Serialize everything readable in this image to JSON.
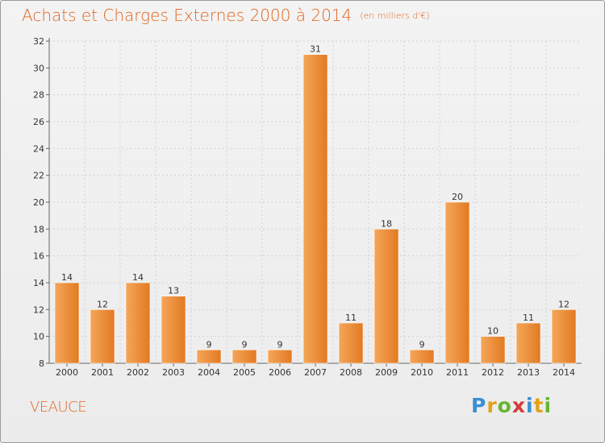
{
  "title": "Achats et Charges Externes 2000 à 2014",
  "unit": "(en milliers d'€)",
  "commune": "VEAUCE",
  "logo": {
    "letters": [
      "P",
      "r",
      "o",
      "x",
      "i",
      "t",
      "i"
    ],
    "colors": [
      "#3b8fd1",
      "#e2a21a",
      "#65b531",
      "#d43a3a",
      "#3b8fd1",
      "#e2a21a",
      "#65b531"
    ]
  },
  "colors": {
    "bar_top": "#f5a65a",
    "bar_bottom": "#e27a22",
    "title": "#e0651e"
  },
  "chart_data": {
    "type": "bar",
    "categories": [
      "2000",
      "2001",
      "2002",
      "2003",
      "2004",
      "2005",
      "2006",
      "2007",
      "2008",
      "2009",
      "2010",
      "2011",
      "2012",
      "2013",
      "2014"
    ],
    "values": [
      14,
      12,
      14,
      13,
      9,
      9,
      9,
      31,
      11,
      18,
      9,
      20,
      10,
      11,
      12
    ],
    "ylim": [
      8,
      32
    ],
    "yticks": [
      8,
      10,
      12,
      14,
      16,
      18,
      20,
      22,
      24,
      26,
      28,
      30,
      32
    ],
    "grid": true,
    "title": "Achats et Charges Externes 2000 à 2014",
    "xlabel": "",
    "ylabel": ""
  }
}
